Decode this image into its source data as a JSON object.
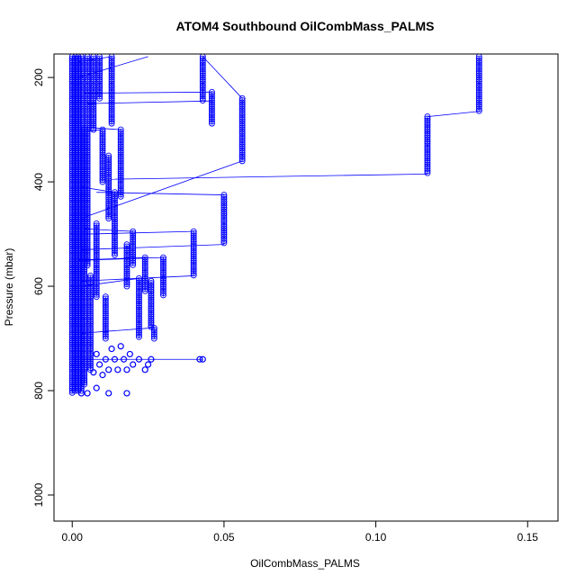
{
  "chart_data": {
    "type": "scatter",
    "title": "ATOM4 Southbound OilCombMass_PALMS",
    "xlabel": "OilCombMass_PALMS",
    "ylabel": "Pressure (mbar)",
    "xlim": [
      -0.006,
      0.16
    ],
    "ylim": [
      1050,
      155
    ],
    "y_reversed": true,
    "x_ticks": [
      0.0,
      0.05,
      0.1,
      0.15
    ],
    "x_tick_labels": [
      "0.00",
      "0.05",
      "0.10",
      "0.15"
    ],
    "y_ticks": [
      200,
      400,
      600,
      800,
      1000
    ],
    "y_tick_labels": [
      "200",
      "400",
      "600",
      "800",
      "1000"
    ],
    "color": "#0000ff",
    "marker": "open-circle",
    "connected": true,
    "grid": false,
    "legend": "none",
    "column_segments": [
      {
        "x": 0.134,
        "p_top": 160,
        "p_bottom": 265
      },
      {
        "x": 0.117,
        "p_top": 275,
        "p_bottom": 385
      },
      {
        "x": 0.056,
        "p_top": 240,
        "p_bottom": 360
      },
      {
        "x": 0.05,
        "p_top": 425,
        "p_bottom": 520
      },
      {
        "x": 0.046,
        "p_top": 228,
        "p_bottom": 290
      },
      {
        "x": 0.043,
        "p_top": 160,
        "p_bottom": 245
      },
      {
        "x": 0.04,
        "p_top": 495,
        "p_bottom": 580
      },
      {
        "x": 0.03,
        "p_top": 545,
        "p_bottom": 620
      },
      {
        "x": 0.027,
        "p_top": 680,
        "p_bottom": 700
      },
      {
        "x": 0.026,
        "p_top": 590,
        "p_bottom": 680
      },
      {
        "x": 0.024,
        "p_top": 545,
        "p_bottom": 610
      },
      {
        "x": 0.022,
        "p_top": 585,
        "p_bottom": 700
      },
      {
        "x": 0.02,
        "p_top": 495,
        "p_bottom": 560
      },
      {
        "x": 0.018,
        "p_top": 520,
        "p_bottom": 600
      },
      {
        "x": 0.016,
        "p_top": 300,
        "p_bottom": 430
      },
      {
        "x": 0.014,
        "p_top": 420,
        "p_bottom": 540
      },
      {
        "x": 0.013,
        "p_top": 160,
        "p_bottom": 290
      },
      {
        "x": 0.012,
        "p_top": 350,
        "p_bottom": 470
      },
      {
        "x": 0.011,
        "p_top": 620,
        "p_bottom": 700
      },
      {
        "x": 0.01,
        "p_top": 300,
        "p_bottom": 400
      },
      {
        "x": 0.009,
        "p_top": 160,
        "p_bottom": 240
      },
      {
        "x": 0.008,
        "p_top": 480,
        "p_bottom": 620
      },
      {
        "x": 0.007,
        "p_top": 160,
        "p_bottom": 300
      },
      {
        "x": 0.006,
        "p_top": 580,
        "p_bottom": 760
      },
      {
        "x": 0.005,
        "p_top": 160,
        "p_bottom": 560
      },
      {
        "x": 0.004,
        "p_top": 300,
        "p_bottom": 790
      },
      {
        "x": 0.003,
        "p_top": 160,
        "p_bottom": 800
      },
      {
        "x": 0.002,
        "p_top": 160,
        "p_bottom": 800
      },
      {
        "x": 0.001,
        "p_top": 160,
        "p_bottom": 800
      },
      {
        "x": 0.0,
        "p_top": 160,
        "p_bottom": 805
      }
    ],
    "low_level_points": [
      {
        "x": 0.043,
        "p": 740
      },
      {
        "x": 0.042,
        "p": 740
      },
      {
        "x": 0.026,
        "p": 740
      },
      {
        "x": 0.025,
        "p": 750
      },
      {
        "x": 0.024,
        "p": 760
      },
      {
        "x": 0.022,
        "p": 740
      },
      {
        "x": 0.02,
        "p": 750
      },
      {
        "x": 0.019,
        "p": 730
      },
      {
        "x": 0.018,
        "p": 760
      },
      {
        "x": 0.017,
        "p": 740
      },
      {
        "x": 0.016,
        "p": 715
      },
      {
        "x": 0.015,
        "p": 760
      },
      {
        "x": 0.014,
        "p": 740
      },
      {
        "x": 0.013,
        "p": 720
      },
      {
        "x": 0.012,
        "p": 760
      },
      {
        "x": 0.011,
        "p": 740
      },
      {
        "x": 0.01,
        "p": 770
      },
      {
        "x": 0.009,
        "p": 750
      },
      {
        "x": 0.008,
        "p": 730
      },
      {
        "x": 0.007,
        "p": 765
      },
      {
        "x": 0.008,
        "p": 795
      },
      {
        "x": 0.012,
        "p": 805
      },
      {
        "x": 0.018,
        "p": 805
      },
      {
        "x": 0.005,
        "p": 805
      },
      {
        "x": 0.003,
        "p": 805
      }
    ],
    "connector_lines": [
      [
        0.134,
        265,
        0.117,
        275
      ],
      [
        0.117,
        385,
        0.013,
        395
      ],
      [
        0.056,
        360,
        0.003,
        470
      ],
      [
        0.05,
        425,
        0.008,
        420
      ],
      [
        0.05,
        520,
        0.003,
        530
      ],
      [
        0.046,
        228,
        0.004,
        230
      ],
      [
        0.046,
        245,
        0.005,
        250
      ],
      [
        0.043,
        160,
        0.056,
        240
      ],
      [
        0.025,
        160,
        0.002,
        200
      ],
      [
        0.04,
        495,
        0.005,
        500
      ],
      [
        0.04,
        580,
        0.003,
        590
      ],
      [
        0.03,
        545,
        0.004,
        550
      ],
      [
        0.026,
        680,
        0.003,
        690
      ],
      [
        0.024,
        545,
        0.002,
        550
      ],
      [
        0.02,
        495,
        0.004,
        490
      ],
      [
        0.016,
        300,
        0.003,
        295
      ],
      [
        0.014,
        420,
        0.003,
        410
      ],
      [
        0.013,
        160,
        0.002,
        170
      ],
      [
        0.01,
        300,
        0.002,
        305
      ],
      [
        0.043,
        740,
        0.003,
        740
      ],
      [
        0.022,
        585,
        0.003,
        600
      ]
    ]
  }
}
